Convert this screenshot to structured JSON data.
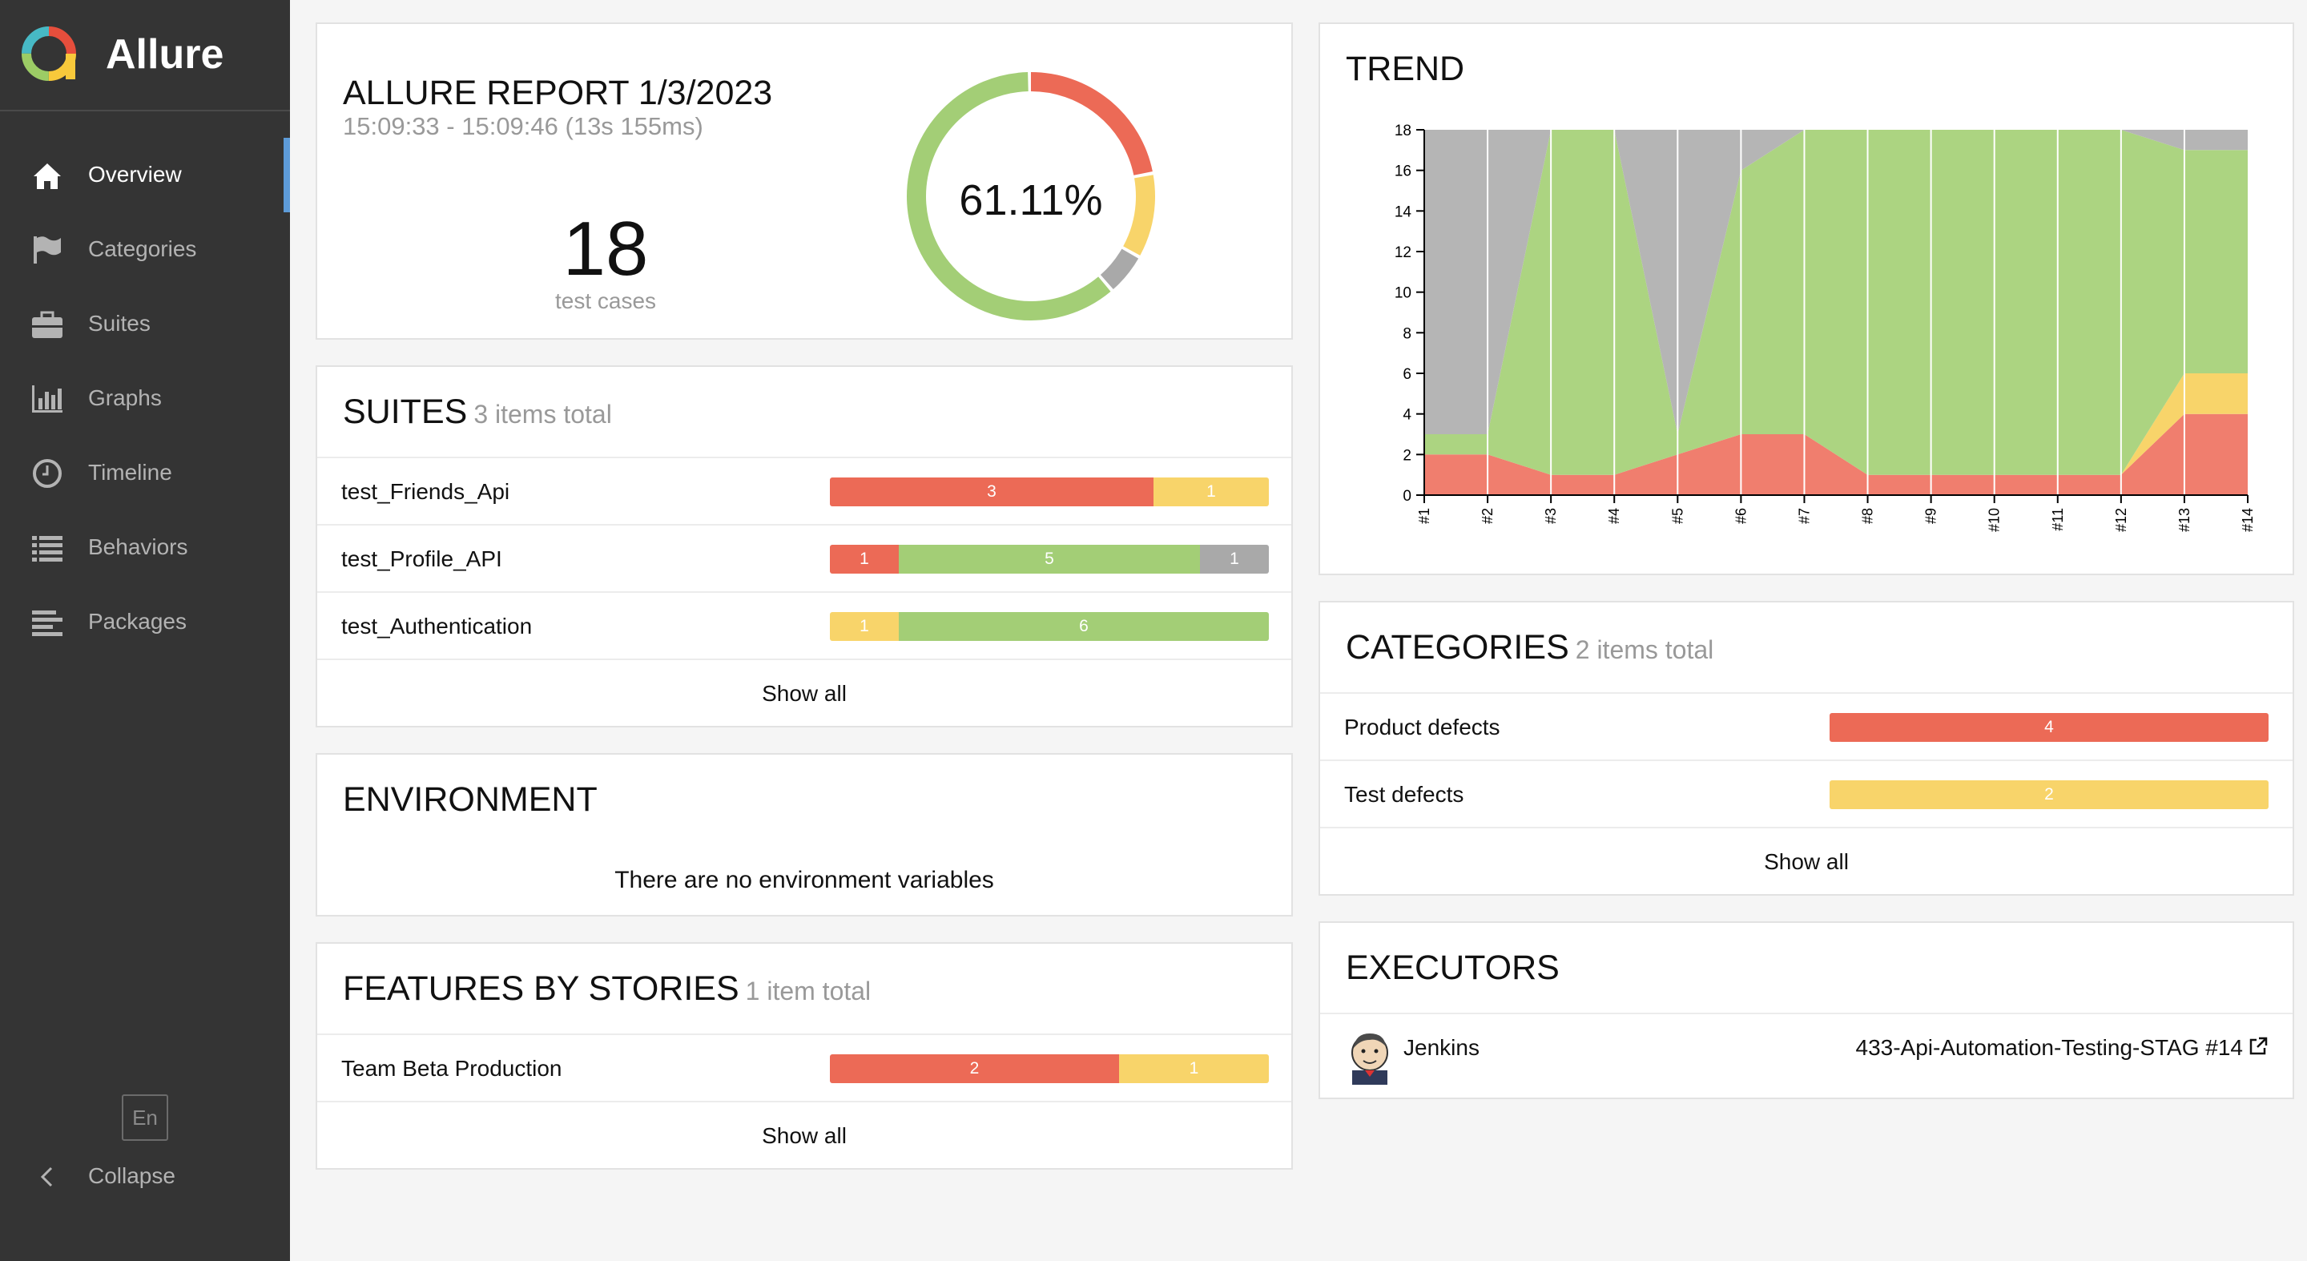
{
  "brand": {
    "name": "Allure"
  },
  "sidebar": {
    "items": [
      {
        "label": "Overview",
        "icon": "home-icon"
      },
      {
        "label": "Categories",
        "icon": "flag-icon"
      },
      {
        "label": "Suites",
        "icon": "briefcase-icon"
      },
      {
        "label": "Graphs",
        "icon": "bar-chart-icon"
      },
      {
        "label": "Timeline",
        "icon": "clock-icon"
      },
      {
        "label": "Behaviors",
        "icon": "list-icon"
      },
      {
        "label": "Packages",
        "icon": "align-left-icon"
      }
    ],
    "language": "En",
    "collapse_label": "Collapse"
  },
  "summary": {
    "title": "ALLURE REPORT 1/3/2023",
    "time": "15:09:33 - 15:09:46 (13s 155ms)",
    "count": "18",
    "count_label": "test cases",
    "percent": "61.11%",
    "donut": {
      "failed": 4,
      "broken": 2,
      "skipped": 1,
      "passed": 11
    }
  },
  "suites": {
    "title": "SUITES",
    "subtitle": "3 items total",
    "rows": [
      {
        "name": "test_Friends_Api",
        "failed": "3",
        "broken": "1",
        "passed": "",
        "skipped": ""
      },
      {
        "name": "test_Profile_API",
        "failed": "1",
        "broken": "",
        "passed": "5",
        "skipped": "1"
      },
      {
        "name": "test_Authentication",
        "failed": "",
        "broken": "1",
        "passed": "6",
        "skipped": ""
      }
    ],
    "show_all": "Show all"
  },
  "environment": {
    "title": "ENVIRONMENT",
    "message": "There are no environment variables"
  },
  "features": {
    "title": "FEATURES BY STORIES",
    "subtitle": "1 item total",
    "rows": [
      {
        "name": "Team Beta Production",
        "failed": "2",
        "broken": "1"
      }
    ],
    "show_all": "Show all"
  },
  "trend": {
    "title": "TREND"
  },
  "chart_data": {
    "type": "area",
    "stacked": true,
    "x": [
      "#1",
      "#2",
      "#3",
      "#4",
      "#5",
      "#6",
      "#7",
      "#8",
      "#9",
      "#10",
      "#11",
      "#12",
      "#13",
      "#14"
    ],
    "ylim": [
      0,
      18
    ],
    "yticks": [
      "0",
      "2",
      "4",
      "6",
      "8",
      "10",
      "12",
      "14",
      "16",
      "18"
    ],
    "series": [
      {
        "key": "failed",
        "color": "#f07e6e",
        "values": [
          2,
          2,
          1,
          1,
          2,
          3,
          3,
          1,
          1,
          1,
          1,
          1,
          4,
          4
        ]
      },
      {
        "key": "broken",
        "color": "#f8d46a",
        "values": [
          0,
          0,
          0,
          0,
          0,
          0,
          0,
          0,
          0,
          0,
          0,
          0,
          2,
          2
        ]
      },
      {
        "key": "passed",
        "color": "#acd481",
        "values": [
          1,
          1,
          17,
          17,
          1,
          13,
          15,
          17,
          17,
          17,
          17,
          17,
          11,
          11
        ]
      },
      {
        "key": "skipped",
        "color": "#b5b5b5",
        "values": [
          15,
          15,
          0,
          0,
          15,
          2,
          0,
          0,
          0,
          0,
          0,
          0,
          1,
          1
        ]
      }
    ]
  },
  "categories": {
    "title": "CATEGORIES",
    "subtitle": "2 items total",
    "rows": [
      {
        "name": "Product defects",
        "value": "4",
        "color": "#ec6a56"
      },
      {
        "name": "Test defects",
        "value": "2",
        "color": "#f8d46a"
      }
    ],
    "show_all": "Show all"
  },
  "executors": {
    "title": "EXECUTORS",
    "name": "Jenkins",
    "build": "433-Api-Automation-Testing-STAG #14"
  }
}
